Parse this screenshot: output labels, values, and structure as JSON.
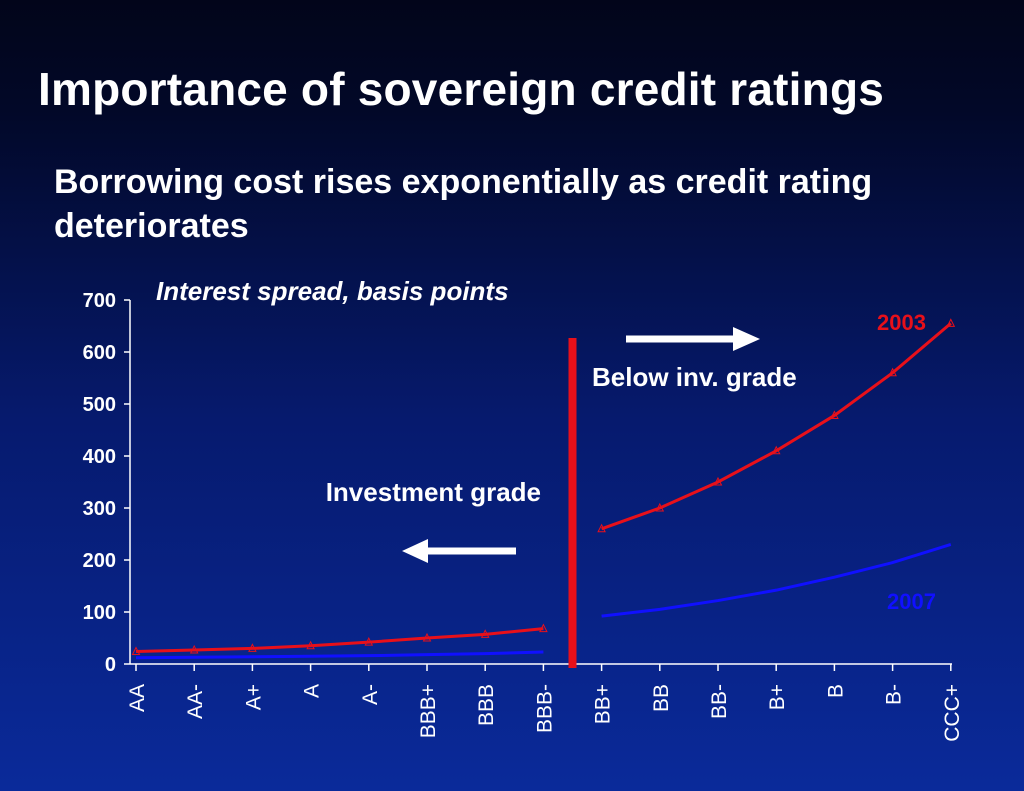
{
  "slide": {
    "title": "Importance of sovereign credit ratings",
    "subtitle": "Borrowing cost rises exponentially as credit rating deteriorates"
  },
  "chart_data": {
    "type": "line",
    "ylabel": "Interest spread, basis points",
    "ylim": [
      0,
      700
    ],
    "yticks": [
      0,
      100,
      200,
      300,
      400,
      500,
      600,
      700
    ],
    "categories": [
      "AA",
      "AA-",
      "A+",
      "A",
      "A-",
      "BBB+",
      "BBB",
      "BBB-",
      "BB+",
      "BB",
      "BB-",
      "B+",
      "B",
      "B-",
      "CCC+"
    ],
    "series": [
      {
        "name": "2003",
        "color": "#e8101a",
        "marker": "triangle",
        "values": [
          24,
          27,
          30,
          35,
          42,
          50,
          57,
          68,
          260,
          300,
          350,
          410,
          478,
          560,
          655
        ]
      },
      {
        "name": "2007",
        "color": "#1010ff",
        "marker": "none",
        "values": [
          12,
          13,
          14,
          15,
          16,
          18,
          20,
          23,
          92,
          105,
          122,
          142,
          167,
          195,
          230
        ]
      }
    ],
    "annotations": {
      "investment": "Investment grade",
      "below": "Below inv. grade"
    },
    "divider_color": "#e8101a",
    "grid": false
  }
}
